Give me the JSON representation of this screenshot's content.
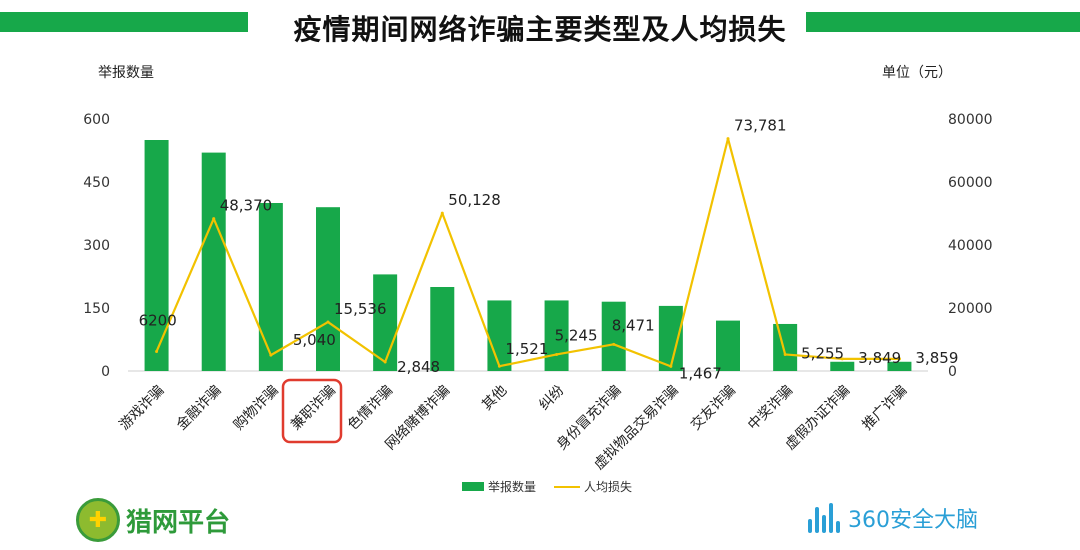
{
  "title": "疫情期间网络诈骗主要类型及人均损失",
  "colors": {
    "banner": "#17a84a",
    "bar": "#17a84a",
    "line": "#f2c200",
    "highlight": "#e03b2e"
  },
  "chart_data": {
    "type": "bar",
    "left_axis_label": "举报数量",
    "right_axis_label": "单位（元）",
    "categories": [
      "游戏诈骗",
      "金融诈骗",
      "购物诈骗",
      "兼职诈骗",
      "色情诈骗",
      "网络赌博诈骗",
      "其他",
      "纠纷",
      "身份冒充诈骗",
      "虚拟物品交易诈骗",
      "交友诈骗",
      "中奖诈骗",
      "虚假办证诈骗",
      "推广诈骗"
    ],
    "highlighted_category": "兼职诈骗",
    "series": [
      {
        "name": "举报数量",
        "type": "bar",
        "axis": "left",
        "values": [
          550,
          520,
          400,
          390,
          230,
          200,
          168,
          168,
          165,
          155,
          120,
          112,
          22,
          22
        ]
      },
      {
        "name": "人均损失",
        "type": "line",
        "axis": "right",
        "values": [
          6200,
          48370,
          5040,
          15536,
          2848,
          50128,
          1521,
          5245,
          8471,
          1467,
          73781,
          5255,
          3849,
          3859
        ]
      }
    ],
    "data_labels": [
      "6200",
      "48,370",
      "5,040",
      "15,536",
      "2,848",
      "50,128",
      "1,521",
      "5,245",
      "8,471",
      "1,467",
      "73,781",
      "5,255",
      "3,849",
      "3,859"
    ],
    "left_ylim": [
      0,
      600
    ],
    "left_ticks": [
      "0",
      "150",
      "300",
      "450",
      "600"
    ],
    "right_ylim": [
      0,
      80000
    ],
    "right_ticks": [
      "0",
      "20000",
      "40000",
      "60000",
      "80000"
    ],
    "legend": [
      "举报数量",
      "人均损失"
    ],
    "legend_position": "bottom"
  },
  "logos": {
    "left": "猎网平台",
    "right": "360安全大脑"
  }
}
